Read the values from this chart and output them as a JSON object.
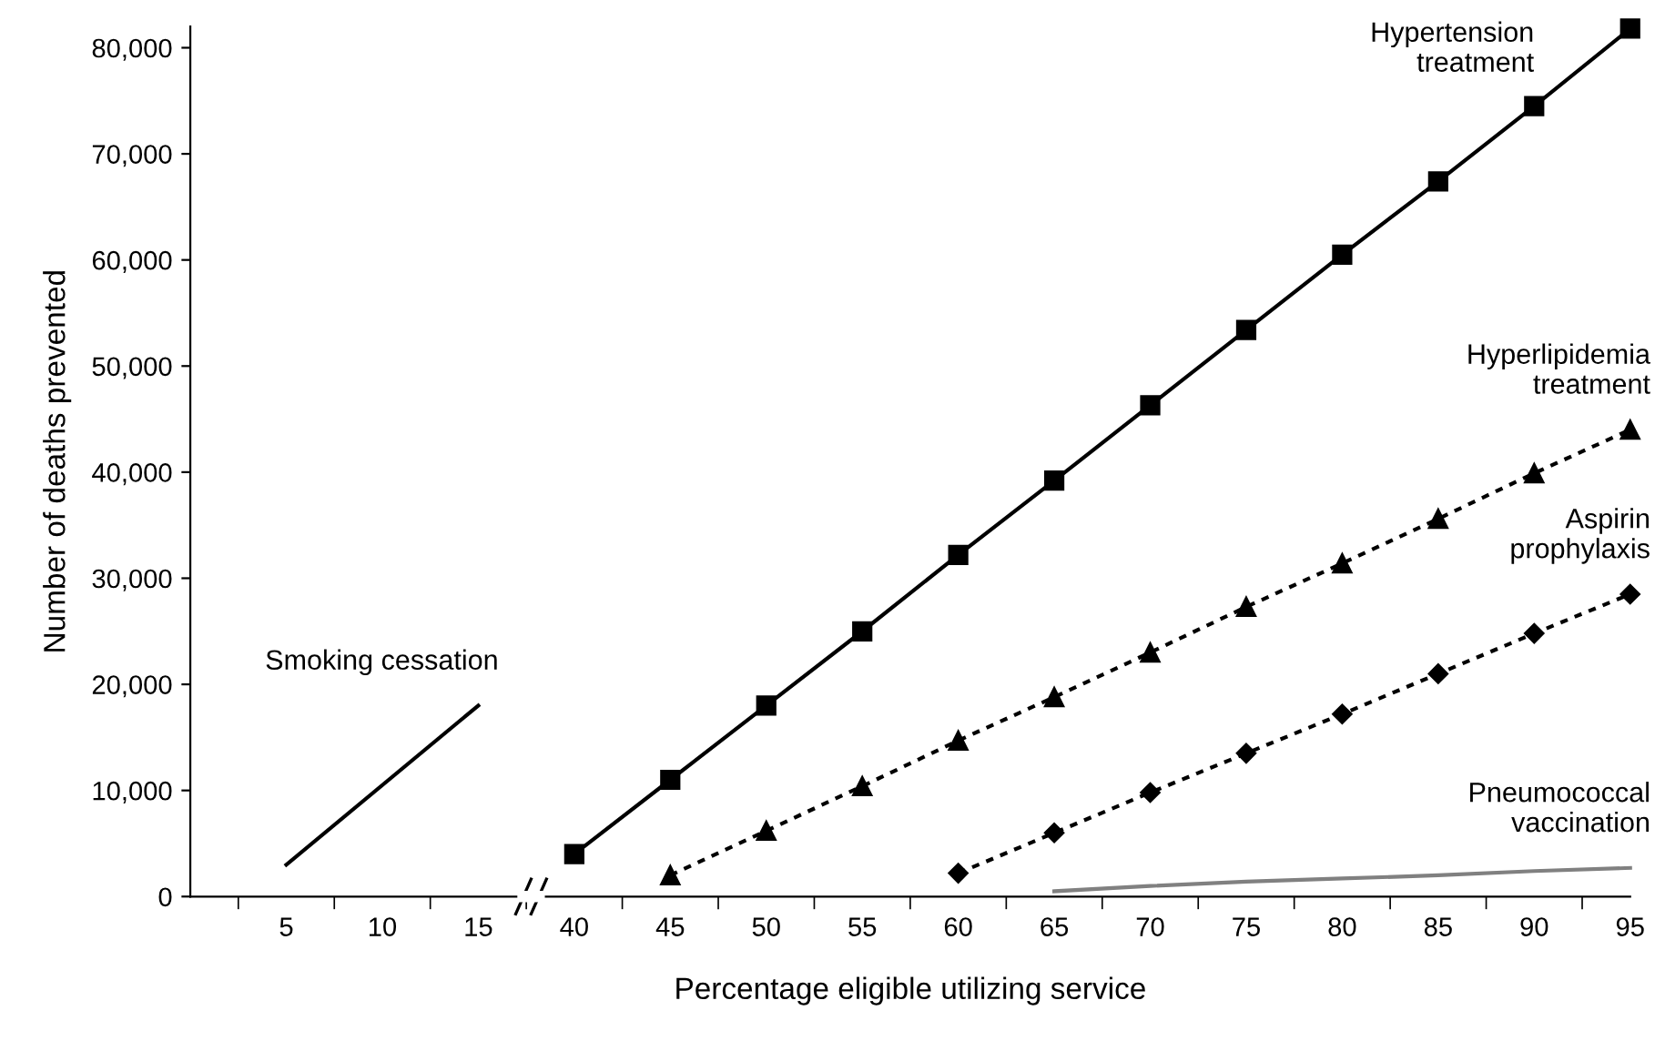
{
  "chart_data": {
    "type": "line",
    "xlabel": "Percentage eligible utilizing service",
    "ylabel": "Number of deaths prevented",
    "categories": [
      "5",
      "10",
      "15",
      "40",
      "45",
      "50",
      "55",
      "60",
      "65",
      "70",
      "75",
      "80",
      "85",
      "90",
      "95"
    ],
    "ylim": [
      0,
      82000
    ],
    "yticks": [
      {
        "value": 0,
        "label": "0"
      },
      {
        "value": 10000,
        "label": "10,000"
      },
      {
        "value": 20000,
        "label": "20,000"
      },
      {
        "value": 30000,
        "label": "30,000"
      },
      {
        "value": 40000,
        "label": "40,000"
      },
      {
        "value": 50000,
        "label": "50,000"
      },
      {
        "value": 60000,
        "label": "60,000"
      },
      {
        "value": 70000,
        "label": "70,000"
      },
      {
        "value": 80000,
        "label": "80,000"
      }
    ],
    "grid": false,
    "legend": false,
    "series": [
      {
        "name": "Smoking cessation",
        "color": "#000000",
        "marker": "none",
        "line_style": "solid",
        "values": [
          3000,
          null,
          18000,
          null,
          null,
          null,
          null,
          null,
          null,
          null,
          null,
          null,
          null,
          null,
          null
        ]
      },
      {
        "name": "Hypertension\ntreatment",
        "color": "#000000",
        "marker": "square",
        "line_style": "solid",
        "values": [
          null,
          null,
          null,
          4000,
          11000,
          18000,
          25000,
          32200,
          39200,
          46300,
          53400,
          60500,
          67400,
          74500,
          81800
        ]
      },
      {
        "name": "Hyperlipidemia\ntreatment",
        "color": "#000000",
        "marker": "triangle",
        "line_style": "dotted",
        "values": [
          null,
          null,
          null,
          null,
          2000,
          6200,
          10400,
          14700,
          18800,
          23000,
          27300,
          31400,
          35600,
          39900,
          44000
        ]
      },
      {
        "name": "Aspirin\nprophylaxis",
        "color": "#000000",
        "marker": "diamond",
        "line_style": "dotted",
        "values": [
          null,
          null,
          null,
          null,
          null,
          null,
          null,
          2200,
          6000,
          9800,
          13500,
          17200,
          21000,
          24800,
          28500
        ]
      },
      {
        "name": "Pneumococcal\nvaccination",
        "color": "#808080",
        "marker": "none",
        "line_style": "solid",
        "values": [
          null,
          null,
          null,
          null,
          null,
          null,
          null,
          null,
          500,
          1000,
          1400,
          1700,
          2000,
          2400,
          2700
        ]
      }
    ]
  }
}
